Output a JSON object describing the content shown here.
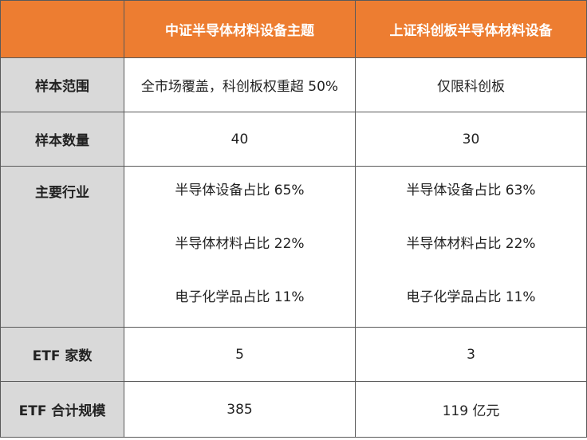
{
  "table": {
    "columns": [
      "中证半导体材料设备主题",
      "上证科创板半导体材料设备"
    ],
    "rows": [
      {
        "label": "样本范围",
        "cells": [
          "全市场覆盖，科创板权重超 50%",
          "仅限科创板"
        ]
      },
      {
        "label": "样本数量",
        "cells": [
          "40",
          "30"
        ]
      },
      {
        "label": "主要行业",
        "cells": [
          [
            "半导体设备占比 65%",
            "半导体材料占比 22%",
            "电子化学品占比 11%"
          ],
          [
            "半导体设备占比 63%",
            "半导体材料占比 22%",
            "电子化学品占比 11%"
          ]
        ]
      },
      {
        "label": "ETF 家数",
        "cells": [
          "5",
          "3"
        ]
      },
      {
        "label": "ETF 合计规模",
        "cells": [
          "385",
          "119 亿元"
        ]
      }
    ]
  }
}
